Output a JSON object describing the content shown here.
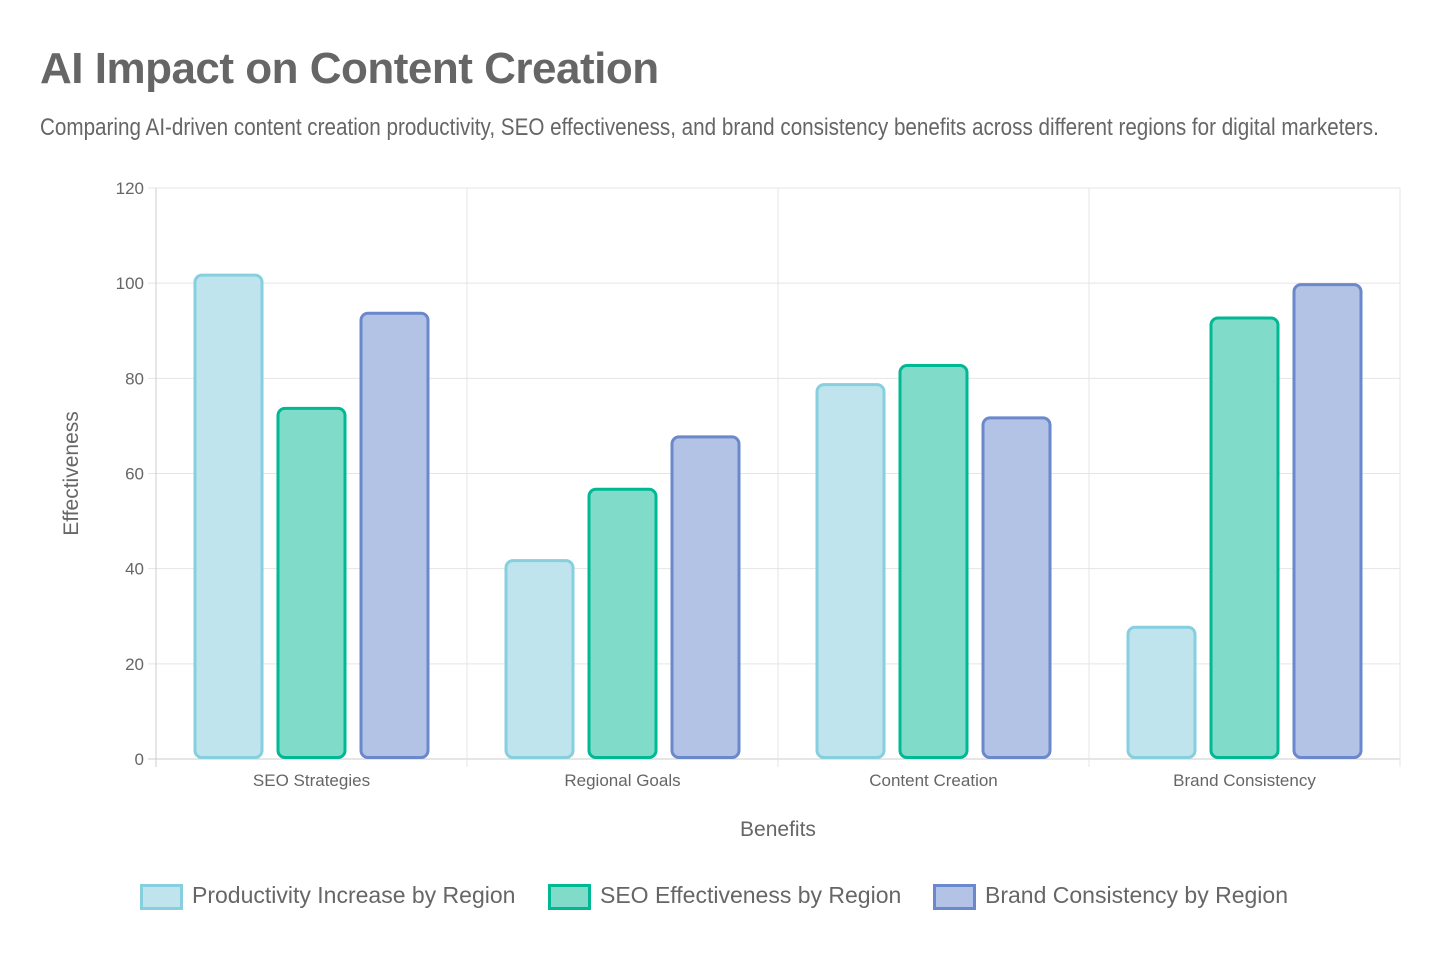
{
  "chart_data": {
    "type": "bar",
    "title": "AI Impact on Content Creation",
    "subtitle": "Comparing AI-driven content creation productivity, SEO effectiveness, and brand consistency benefits across different regions for digital marketers.",
    "xlabel": "Benefits",
    "ylabel": "Effectiveness",
    "ylim": [
      0,
      120
    ],
    "yticks": [
      "0",
      "20",
      "40",
      "60",
      "80",
      "100",
      "120"
    ],
    "grid": true,
    "legend_position": "bottom",
    "categories": [
      "SEO Strategies",
      "Regional Goals",
      "Content Creation",
      "Brand Consistency"
    ],
    "series": [
      {
        "name": "Productivity Increase by Region",
        "values": [
          102,
          42,
          79,
          28
        ],
        "fill": "#c0e4ed",
        "stroke": "#86cfdf"
      },
      {
        "name": "SEO Effectiveness by Region",
        "values": [
          74,
          57,
          83,
          93
        ],
        "fill": "#80dcc8",
        "stroke": "#00b893"
      },
      {
        "name": "Brand Consistency by Region",
        "values": [
          94,
          68,
          72,
          100
        ],
        "fill": "#b3c3e5",
        "stroke": "#6b88cc"
      }
    ]
  }
}
